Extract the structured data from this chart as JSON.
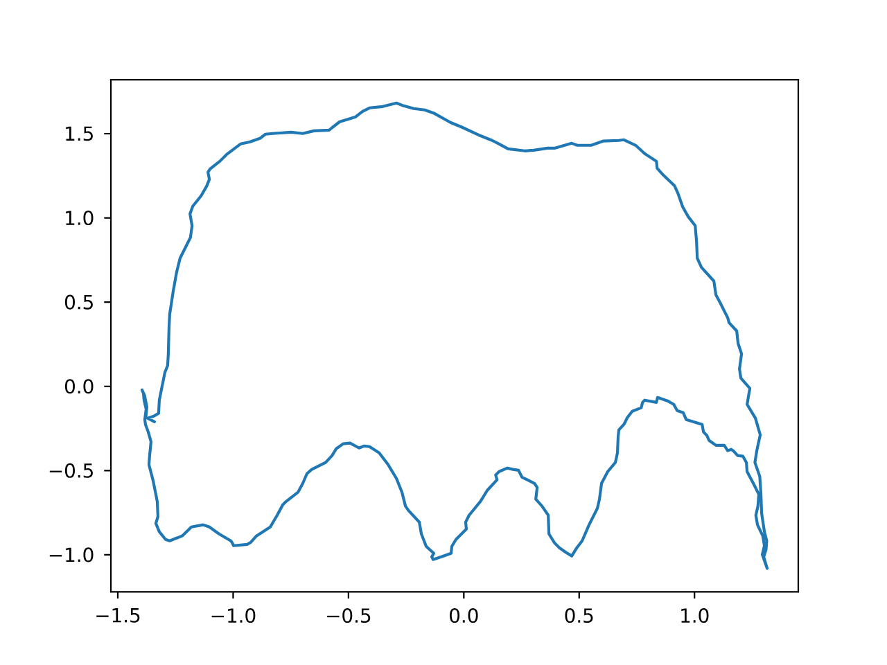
{
  "chart_data": {
    "type": "line",
    "xlim": [
      -1.53,
      1.45
    ],
    "ylim": [
      -1.22,
      1.82
    ],
    "xticks": [
      {
        "value": -1.5,
        "label": "−1.5"
      },
      {
        "value": -1.0,
        "label": "−1.0"
      },
      {
        "value": -0.5,
        "label": "−0.5"
      },
      {
        "value": 0.0,
        "label": "0.0"
      },
      {
        "value": 0.5,
        "label": "0.5"
      },
      {
        "value": 1.0,
        "label": "1.0"
      }
    ],
    "yticks": [
      {
        "value": -1.0,
        "label": "−1.0"
      },
      {
        "value": -0.5,
        "label": "−0.5"
      },
      {
        "value": 0.0,
        "label": "0.0"
      },
      {
        "value": 0.5,
        "label": "0.5"
      },
      {
        "value": 1.0,
        "label": "1.0"
      },
      {
        "value": 1.5,
        "label": "1.5"
      }
    ],
    "x": [
      -1.341,
      -1.371,
      -1.344,
      -1.323,
      -1.32,
      -1.314,
      -1.296,
      -1.284,
      -1.281,
      -1.278,
      -1.275,
      -1.26,
      -1.245,
      -1.23,
      -1.2,
      -1.185,
      -1.178,
      -1.187,
      -1.175,
      -1.139,
      -1.115,
      -1.103,
      -1.109,
      -1.1,
      -1.058,
      -1.028,
      -0.968,
      -0.929,
      -0.884,
      -0.86,
      -0.83,
      -0.749,
      -0.698,
      -0.65,
      -0.584,
      -0.569,
      -0.538,
      -0.508,
      -0.469,
      -0.439,
      -0.409,
      -0.352,
      -0.292,
      -0.268,
      -0.217,
      -0.169,
      -0.127,
      -0.058,
      -0.007,
      0.063,
      0.123,
      0.153,
      0.192,
      0.264,
      0.303,
      0.363,
      0.393,
      0.468,
      0.492,
      0.552,
      0.603,
      0.672,
      0.694,
      0.745,
      0.784,
      0.835,
      0.838,
      0.865,
      0.913,
      0.928,
      0.949,
      0.973,
      1.003,
      1.009,
      1.012,
      1.03,
      1.084,
      1.093,
      1.114,
      1.144,
      1.15,
      1.183,
      1.189,
      1.204,
      1.195,
      1.201,
      1.24,
      1.228,
      1.264,
      1.285,
      1.27,
      1.262,
      1.283,
      1.288,
      1.291,
      1.303,
      1.313,
      1.31,
      1.3,
      1.315,
      1.294,
      1.303,
      1.296,
      1.273,
      1.266,
      1.275,
      1.279,
      1.255,
      1.228,
      1.225,
      1.21,
      1.187,
      1.168,
      1.159,
      1.144,
      1.129,
      1.093,
      1.063,
      1.054,
      1.039,
      1.033,
      0.994,
      0.964,
      0.951,
      0.925,
      0.91,
      0.883,
      0.84,
      0.835,
      0.784,
      0.775,
      0.769,
      0.73,
      0.709,
      0.694,
      0.672,
      0.669,
      0.666,
      0.657,
      0.624,
      0.597,
      0.588,
      0.579,
      0.543,
      0.513,
      0.49,
      0.468,
      0.444,
      0.414,
      0.393,
      0.369,
      0.366,
      0.339,
      0.312,
      0.318,
      0.306,
      0.252,
      0.237,
      0.213,
      0.189,
      0.153,
      0.138,
      0.144,
      0.102,
      0.072,
      0.023,
      0.008,
      0.011,
      -0.034,
      -0.052,
      -0.055,
      -0.097,
      -0.133,
      -0.139,
      -0.13,
      -0.163,
      -0.184,
      -0.193,
      -0.238,
      -0.253,
      -0.268,
      -0.292,
      -0.328,
      -0.367,
      -0.409,
      -0.433,
      -0.454,
      -0.493,
      -0.523,
      -0.553,
      -0.571,
      -0.599,
      -0.659,
      -0.68,
      -0.698,
      -0.719,
      -0.77,
      -0.785,
      -0.809,
      -0.839,
      -0.899,
      -0.923,
      -0.938,
      -0.998,
      -1.004,
      -1.01,
      -1.061,
      -1.103,
      -1.13,
      -1.181,
      -1.19,
      -1.221,
      -1.275,
      -1.293,
      -1.32,
      -1.335,
      -1.326,
      -1.329,
      -1.347,
      -1.365,
      -1.362,
      -1.356,
      -1.368,
      -1.38,
      -1.383,
      -1.377,
      -1.386,
      -1.389,
      -1.395,
      -1.384,
      -1.374,
      -1.378
    ],
    "series": [
      {
        "color": "#1f77b4",
        "values": [
          -0.21,
          -0.189,
          -0.177,
          -0.16,
          -0.082,
          -0.041,
          0.082,
          0.123,
          0.193,
          0.345,
          0.428,
          0.563,
          0.678,
          0.761,
          0.843,
          0.884,
          0.954,
          1.024,
          1.069,
          1.131,
          1.188,
          1.229,
          1.271,
          1.291,
          1.336,
          1.377,
          1.439,
          1.451,
          1.472,
          1.497,
          1.501,
          1.509,
          1.501,
          1.517,
          1.521,
          1.538,
          1.571,
          1.583,
          1.6,
          1.632,
          1.653,
          1.661,
          1.682,
          1.669,
          1.649,
          1.641,
          1.62,
          1.567,
          1.538,
          1.493,
          1.46,
          1.439,
          1.41,
          1.398,
          1.402,
          1.414,
          1.414,
          1.443,
          1.431,
          1.431,
          1.456,
          1.46,
          1.464,
          1.431,
          1.382,
          1.336,
          1.295,
          1.254,
          1.192,
          1.147,
          1.065,
          1.007,
          0.954,
          0.859,
          0.761,
          0.707,
          0.625,
          0.543,
          0.489,
          0.407,
          0.378,
          0.329,
          0.255,
          0.193,
          0.103,
          0.049,
          -0.012,
          -0.107,
          -0.189,
          -0.288,
          -0.382,
          -0.452,
          -0.535,
          -0.641,
          -0.752,
          -0.863,
          -0.917,
          -0.97,
          -1.012,
          -1.081,
          -0.999,
          -0.946,
          -0.888,
          -0.822,
          -0.765,
          -0.711,
          -0.641,
          -0.576,
          -0.506,
          -0.452,
          -0.415,
          -0.411,
          -0.382,
          -0.374,
          -0.382,
          -0.35,
          -0.35,
          -0.321,
          -0.292,
          -0.271,
          -0.226,
          -0.21,
          -0.197,
          -0.156,
          -0.144,
          -0.107,
          -0.086,
          -0.066,
          -0.095,
          -0.082,
          -0.095,
          -0.127,
          -0.148,
          -0.185,
          -0.226,
          -0.259,
          -0.3,
          -0.395,
          -0.452,
          -0.506,
          -0.576,
          -0.67,
          -0.724,
          -0.822,
          -0.917,
          -0.958,
          -1.007,
          -0.987,
          -0.958,
          -0.929,
          -0.876,
          -0.765,
          -0.711,
          -0.67,
          -0.6,
          -0.576,
          -0.539,
          -0.498,
          -0.493,
          -0.485,
          -0.506,
          -0.526,
          -0.555,
          -0.617,
          -0.683,
          -0.765,
          -0.806,
          -0.847,
          -0.909,
          -0.95,
          -0.991,
          -1.012,
          -1.028,
          -1.012,
          -0.991,
          -0.95,
          -0.876,
          -0.806,
          -0.74,
          -0.711,
          -0.629,
          -0.547,
          -0.465,
          -0.395,
          -0.358,
          -0.354,
          -0.366,
          -0.337,
          -0.341,
          -0.37,
          -0.411,
          -0.452,
          -0.493,
          -0.518,
          -0.576,
          -0.629,
          -0.683,
          -0.703,
          -0.765,
          -0.835,
          -0.888,
          -0.925,
          -0.938,
          -0.946,
          -0.929,
          -0.917,
          -0.876,
          -0.835,
          -0.822,
          -0.835,
          -0.847,
          -0.888,
          -0.917,
          -0.909,
          -0.863,
          -0.814,
          -0.773,
          -0.683,
          -0.559,
          -0.465,
          -0.411,
          -0.329,
          -0.271,
          -0.226,
          -0.197,
          -0.136,
          -0.082,
          -0.041,
          -0.021,
          -0.053,
          -0.123,
          -0.177
        ]
      }
    ]
  }
}
